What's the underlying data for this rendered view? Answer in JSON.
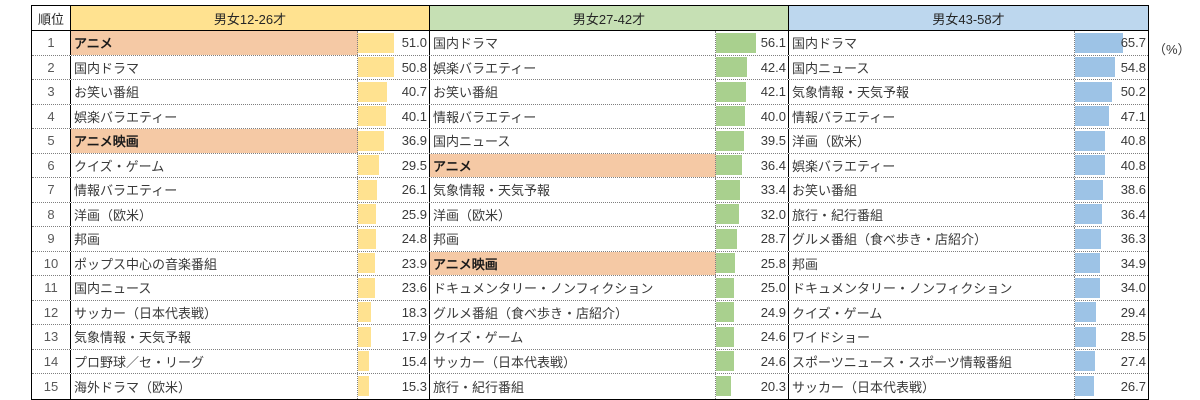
{
  "ui": {
    "rank_header": "順位",
    "percent_label": "（%）",
    "group_headers": [
      "男女12-26才",
      "男女27-42才",
      "男女43-58才"
    ],
    "colors": {
      "header_fills": [
        "#FFE290",
        "#C6E0B4",
        "#BDD7EE"
      ],
      "bar_fills": [
        "#FFE290",
        "#A9D08E",
        "#9DC3E6"
      ],
      "highlight_fill": "#F5C9A5",
      "solid_border": "#000000",
      "dotted_border": "#7F7F7F",
      "text": "#3A3A3A"
    }
  },
  "chart_data": {
    "type": "table",
    "unit": "%",
    "unit_label": "（%）",
    "rank_header": "順位",
    "ranks": [
      1,
      2,
      3,
      4,
      5,
      6,
      7,
      8,
      9,
      10,
      11,
      12,
      13,
      14,
      15
    ],
    "bar_scale_max": 100,
    "series": [
      {
        "name": "男女12-26才",
        "rows": [
          {
            "label": "アニメ",
            "value": 51.0,
            "highlighted": true
          },
          {
            "label": "国内ドラマ",
            "value": 50.8,
            "highlighted": false
          },
          {
            "label": "お笑い番組",
            "value": 40.7,
            "highlighted": false
          },
          {
            "label": "娯楽バラエティー",
            "value": 40.1,
            "highlighted": false
          },
          {
            "label": "アニメ映画",
            "value": 36.9,
            "highlighted": true
          },
          {
            "label": "クイズ・ゲーム",
            "value": 29.5,
            "highlighted": false
          },
          {
            "label": "情報バラエティー",
            "value": 26.1,
            "highlighted": false
          },
          {
            "label": "洋画（欧米）",
            "value": 25.9,
            "highlighted": false
          },
          {
            "label": "邦画",
            "value": 24.8,
            "highlighted": false
          },
          {
            "label": "ポップス中心の音楽番組",
            "value": 23.9,
            "highlighted": false
          },
          {
            "label": "国内ニュース",
            "value": 23.6,
            "highlighted": false
          },
          {
            "label": "サッカー（日本代表戦）",
            "value": 18.3,
            "highlighted": false
          },
          {
            "label": "気象情報・天気予報",
            "value": 17.9,
            "highlighted": false
          },
          {
            "label": "プロ野球／セ・リーグ",
            "value": 15.4,
            "highlighted": false
          },
          {
            "label": "海外ドラマ（欧米）",
            "value": 15.3,
            "highlighted": false
          }
        ]
      },
      {
        "name": "男女27-42才",
        "rows": [
          {
            "label": "国内ドラマ",
            "value": 56.1,
            "highlighted": false
          },
          {
            "label": "娯楽バラエティー",
            "value": 42.4,
            "highlighted": false
          },
          {
            "label": "お笑い番組",
            "value": 42.1,
            "highlighted": false
          },
          {
            "label": "情報バラエティー",
            "value": 40.0,
            "highlighted": false
          },
          {
            "label": "国内ニュース",
            "value": 39.5,
            "highlighted": false
          },
          {
            "label": "アニメ",
            "value": 36.4,
            "highlighted": true
          },
          {
            "label": "気象情報・天気予報",
            "value": 33.4,
            "highlighted": false
          },
          {
            "label": "洋画（欧米）",
            "value": 32.0,
            "highlighted": false
          },
          {
            "label": "邦画",
            "value": 28.7,
            "highlighted": false
          },
          {
            "label": "アニメ映画",
            "value": 25.8,
            "highlighted": true
          },
          {
            "label": "ドキュメンタリー・ノンフィクション",
            "value": 25.0,
            "highlighted": false
          },
          {
            "label": "グルメ番組（食べ歩き・店紹介）",
            "value": 24.9,
            "highlighted": false
          },
          {
            "label": "クイズ・ゲーム",
            "value": 24.6,
            "highlighted": false
          },
          {
            "label": "サッカー（日本代表戦）",
            "value": 24.6,
            "highlighted": false
          },
          {
            "label": "旅行・紀行番組",
            "value": 20.3,
            "highlighted": false
          }
        ]
      },
      {
        "name": "男女43-58才",
        "rows": [
          {
            "label": "国内ドラマ",
            "value": 65.7,
            "highlighted": false
          },
          {
            "label": "国内ニュース",
            "value": 54.8,
            "highlighted": false
          },
          {
            "label": "気象情報・天気予報",
            "value": 50.2,
            "highlighted": false
          },
          {
            "label": "情報バラエティー",
            "value": 47.1,
            "highlighted": false
          },
          {
            "label": "洋画（欧米）",
            "value": 40.8,
            "highlighted": false
          },
          {
            "label": "娯楽バラエティー",
            "value": 40.8,
            "highlighted": false
          },
          {
            "label": "お笑い番組",
            "value": 38.6,
            "highlighted": false
          },
          {
            "label": "旅行・紀行番組",
            "value": 36.4,
            "highlighted": false
          },
          {
            "label": "グルメ番組（食べ歩き・店紹介）",
            "value": 36.3,
            "highlighted": false
          },
          {
            "label": "邦画",
            "value": 34.9,
            "highlighted": false
          },
          {
            "label": "ドキュメンタリー・ノンフィクション",
            "value": 34.0,
            "highlighted": false
          },
          {
            "label": "クイズ・ゲーム",
            "value": 29.4,
            "highlighted": false
          },
          {
            "label": "ワイドショー",
            "value": 28.5,
            "highlighted": false
          },
          {
            "label": "スポーツニュース・スポーツ情報番組",
            "value": 27.4,
            "highlighted": false
          },
          {
            "label": "サッカー（日本代表戦）",
            "value": 26.7,
            "highlighted": false
          }
        ]
      }
    ]
  }
}
